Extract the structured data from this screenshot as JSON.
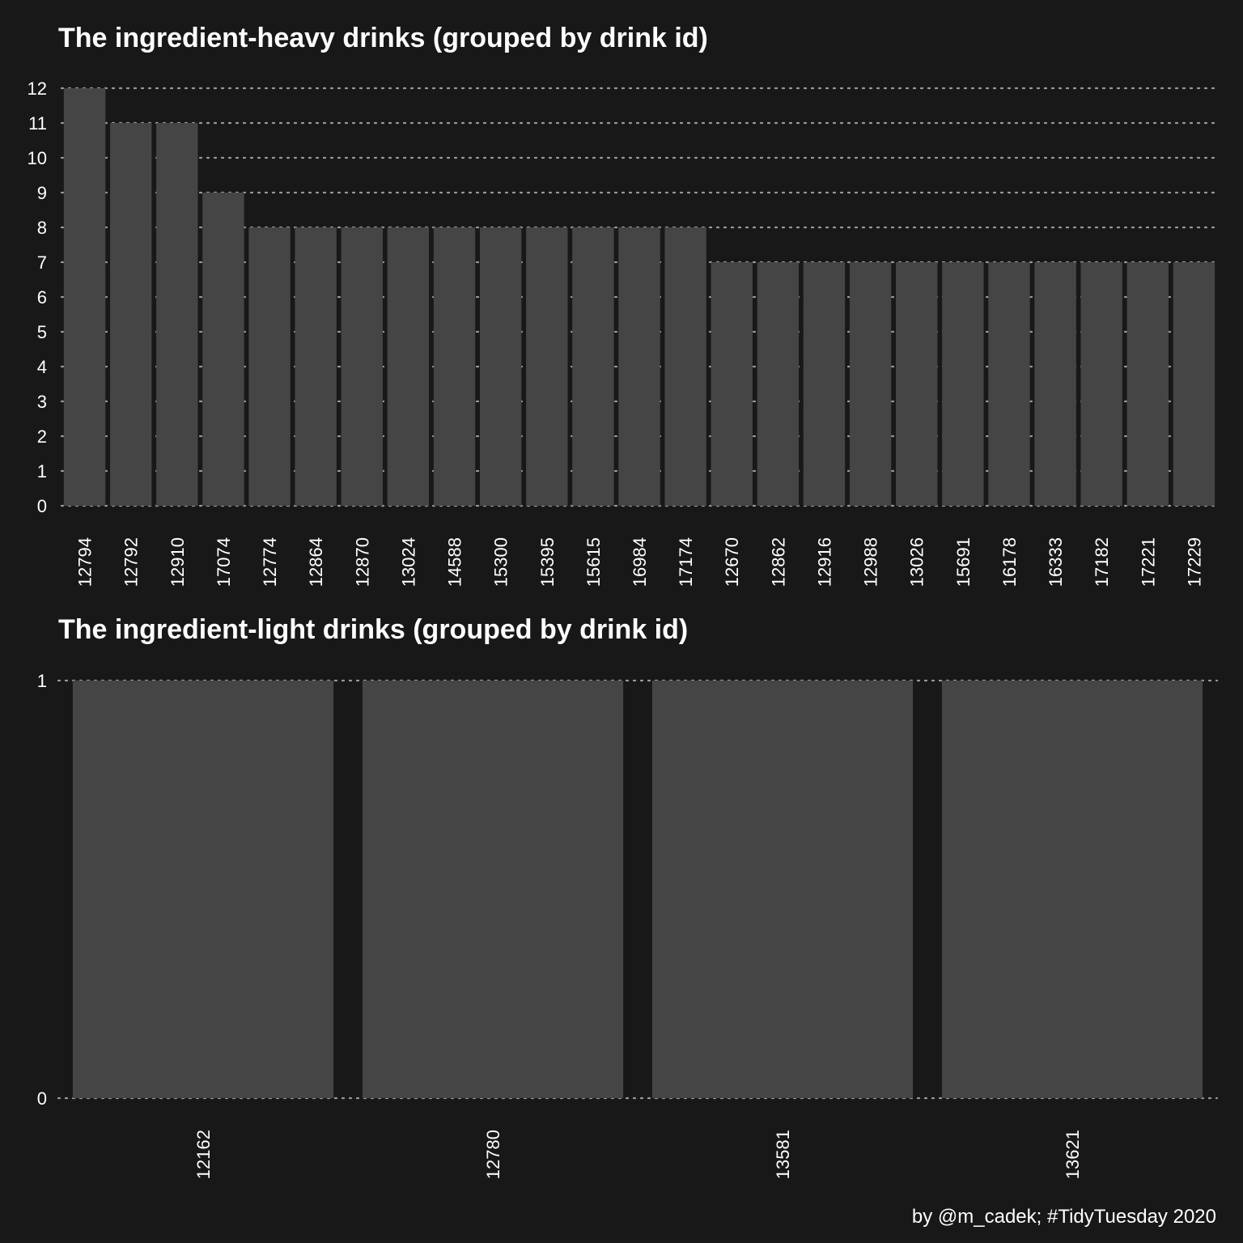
{
  "chart_data": [
    {
      "type": "bar",
      "title": "The ingredient-heavy drinks (grouped by drink id)",
      "xlabel": "",
      "ylabel": "",
      "categories": [
        "12794",
        "12792",
        "12910",
        "17074",
        "12774",
        "12864",
        "12870",
        "13024",
        "14588",
        "15300",
        "15395",
        "15615",
        "16984",
        "17174",
        "12670",
        "12862",
        "12916",
        "12988",
        "13026",
        "15691",
        "16178",
        "16333",
        "17182",
        "17221",
        "17229"
      ],
      "values": [
        12,
        11,
        11,
        9,
        8,
        8,
        8,
        8,
        8,
        8,
        8,
        8,
        8,
        8,
        7,
        7,
        7,
        7,
        7,
        7,
        7,
        7,
        7,
        7,
        7
      ],
      "ylim": [
        0,
        12
      ],
      "yticks": [
        0,
        1,
        2,
        3,
        4,
        5,
        6,
        7,
        8,
        9,
        10,
        11,
        12
      ],
      "grid": "horizontal dotted",
      "colors": {
        "bar": "#454545",
        "grid": "#9a9a9a",
        "background": "#181818",
        "text": "#ffffff"
      }
    },
    {
      "type": "bar",
      "title": "The ingredient-light drinks (grouped by drink id)",
      "xlabel": "",
      "ylabel": "",
      "categories": [
        "12162",
        "12780",
        "13581",
        "13621"
      ],
      "values": [
        1,
        1,
        1,
        1
      ],
      "ylim": [
        0,
        1
      ],
      "yticks": [
        0,
        1
      ],
      "grid": "horizontal dotted",
      "colors": {
        "bar": "#454545",
        "grid": "#9a9a9a",
        "background": "#181818",
        "text": "#ffffff"
      }
    }
  ],
  "caption": "by @m_cadek; #TidyTuesday 2020"
}
